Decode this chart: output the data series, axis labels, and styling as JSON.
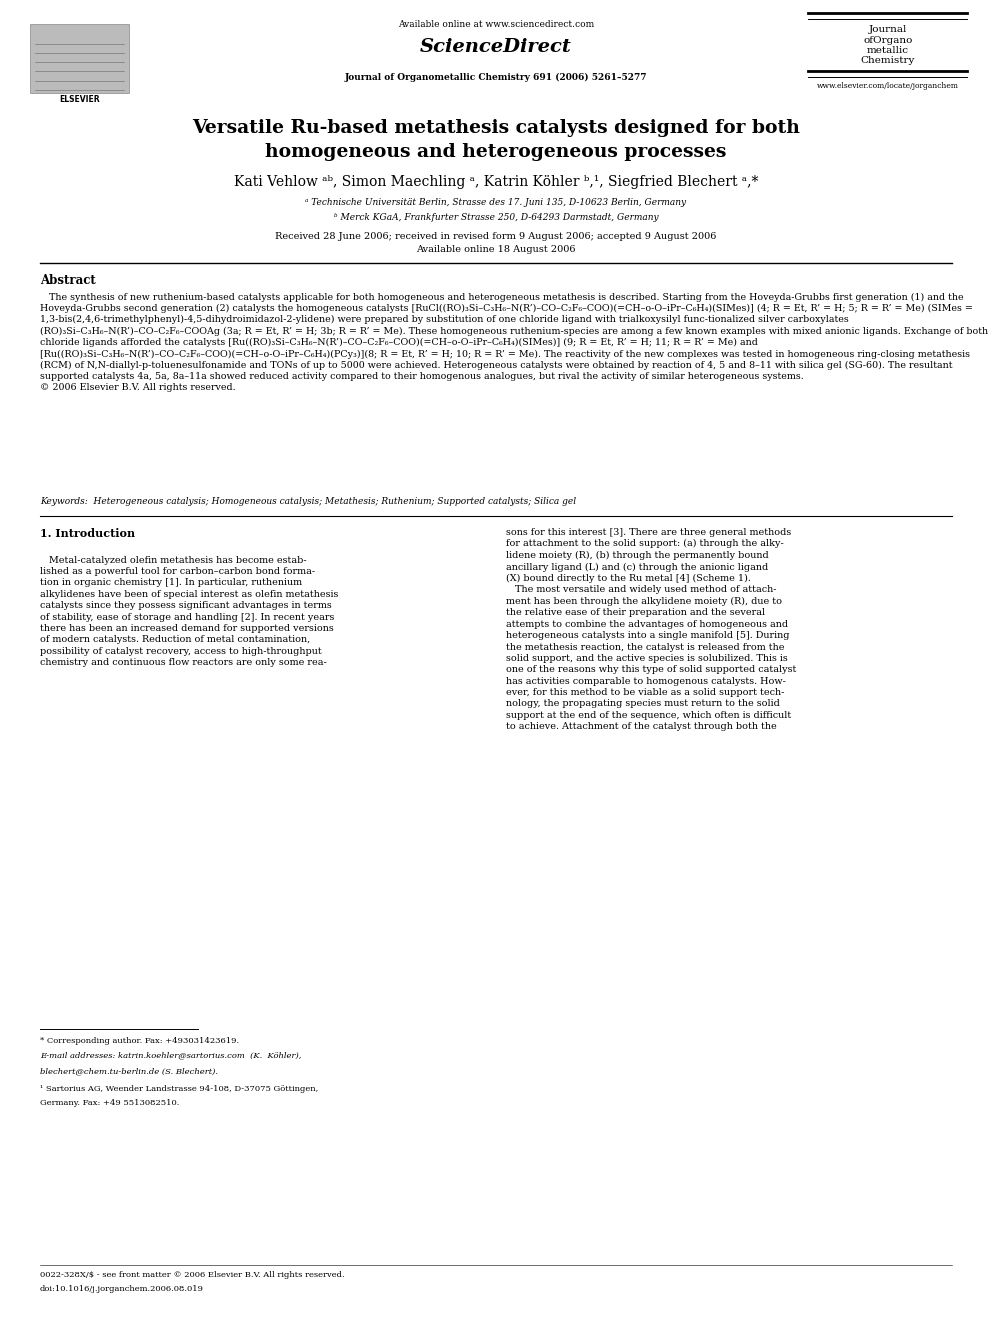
{
  "bg_color": "#ffffff",
  "page_width": 9.92,
  "page_height": 13.23,
  "title": "Versatile Ru-based metathesis catalysts designed for both\nhomogeneous and heterogeneous processes",
  "journal_info": "Journal of Organometallic Chemistry 691 (2006) 5261–5277",
  "website": "www.elsevier.com/locate/jorganchem",
  "available_online": "Available online at www.sciencedirect.com",
  "sciencedirect": "ScienceDirect",
  "journal_box": "Journal\nofOrgano\nmetallic\nChemistry",
  "elsevier_text": "ELSEVIER",
  "received": "Received 28 June 2006; received in revised form 9 August 2006; accepted 9 August 2006",
  "available": "Available online 18 August 2006",
  "abstract_title": "Abstract",
  "keywords_label": "Keywords:",
  "keywords_text": "Heterogeneous catalysis; Homogeneous catalysis; Metathesis; Ruthenium; Supported catalysts; Silica gel",
  "section1_title": "1. Introduction",
  "footnote_star": "* Corresponding author. Fax: +493031423619.",
  "bottom_line1": "0022-328X/$ - see front matter © 2006 Elsevier B.V. All rights reserved.",
  "bottom_line2": "doi:10.1016/j.jorganchem.2006.08.019"
}
